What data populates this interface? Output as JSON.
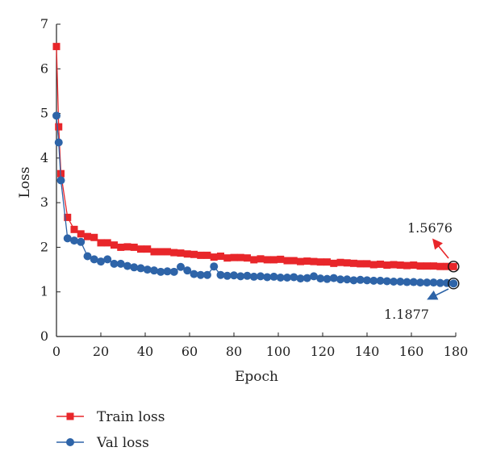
{
  "chart_data": {
    "type": "line",
    "title": "",
    "xlabel": "Epoch",
    "ylabel": "Loss",
    "xlim": [
      0,
      180
    ],
    "ylim": [
      0,
      7
    ],
    "xticks": [
      "0",
      "20",
      "40",
      "60",
      "80",
      "100",
      "120",
      "140",
      "160",
      "180"
    ],
    "yticks": [
      "0",
      "1",
      "2",
      "3",
      "4",
      "5",
      "6",
      "7"
    ],
    "grid": false,
    "legend_position": "bottom-left",
    "series": [
      {
        "name": "Train loss",
        "color": "#e8262a",
        "marker": "square",
        "x": [
          0,
          1,
          2,
          5,
          8,
          11,
          14,
          17,
          20,
          23,
          26,
          29,
          32,
          35,
          38,
          41,
          44,
          47,
          50,
          53,
          56,
          59,
          62,
          65,
          68,
          71,
          74,
          77,
          80,
          83,
          86,
          89,
          92,
          95,
          98,
          101,
          104,
          107,
          110,
          113,
          116,
          119,
          122,
          125,
          128,
          131,
          134,
          137,
          140,
          143,
          146,
          149,
          152,
          155,
          158,
          161,
          164,
          167,
          170,
          173,
          176,
          179
        ],
        "y": [
          6.5,
          4.7,
          3.65,
          2.67,
          2.4,
          2.3,
          2.24,
          2.22,
          2.1,
          2.1,
          2.05,
          2.0,
          2.01,
          2.0,
          1.96,
          1.96,
          1.9,
          1.9,
          1.9,
          1.88,
          1.87,
          1.85,
          1.84,
          1.82,
          1.82,
          1.78,
          1.8,
          1.76,
          1.77,
          1.77,
          1.76,
          1.72,
          1.74,
          1.72,
          1.72,
          1.73,
          1.7,
          1.7,
          1.68,
          1.69,
          1.68,
          1.67,
          1.67,
          1.64,
          1.66,
          1.65,
          1.64,
          1.63,
          1.63,
          1.61,
          1.62,
          1.6,
          1.61,
          1.6,
          1.59,
          1.6,
          1.58,
          1.58,
          1.58,
          1.57,
          1.57,
          1.5676
        ]
      },
      {
        "name": "Val loss",
        "color": "#2e64a8",
        "marker": "circle",
        "x": [
          0,
          1,
          2,
          5,
          8,
          11,
          14,
          17,
          20,
          23,
          26,
          29,
          32,
          35,
          38,
          41,
          44,
          47,
          50,
          53,
          56,
          59,
          62,
          65,
          68,
          71,
          74,
          77,
          80,
          83,
          86,
          89,
          92,
          95,
          98,
          101,
          104,
          107,
          110,
          113,
          116,
          119,
          122,
          125,
          128,
          131,
          134,
          137,
          140,
          143,
          146,
          149,
          152,
          155,
          158,
          161,
          164,
          167,
          170,
          173,
          176,
          179
        ],
        "y": [
          4.95,
          4.35,
          3.5,
          2.2,
          2.15,
          2.12,
          1.8,
          1.73,
          1.68,
          1.73,
          1.63,
          1.63,
          1.58,
          1.55,
          1.53,
          1.5,
          1.48,
          1.45,
          1.46,
          1.45,
          1.56,
          1.48,
          1.4,
          1.38,
          1.38,
          1.57,
          1.38,
          1.36,
          1.37,
          1.35,
          1.36,
          1.34,
          1.35,
          1.33,
          1.34,
          1.32,
          1.32,
          1.33,
          1.3,
          1.31,
          1.35,
          1.3,
          1.29,
          1.31,
          1.28,
          1.28,
          1.26,
          1.27,
          1.26,
          1.25,
          1.25,
          1.24,
          1.23,
          1.23,
          1.22,
          1.22,
          1.21,
          1.21,
          1.21,
          1.2,
          1.2,
          1.1877
        ]
      }
    ],
    "annotations": [
      {
        "text": "1.5676",
        "series": "Train loss",
        "x": 179,
        "y": 1.5676
      },
      {
        "text": "1.1877",
        "series": "Val loss",
        "x": 179,
        "y": 1.1877
      }
    ]
  }
}
